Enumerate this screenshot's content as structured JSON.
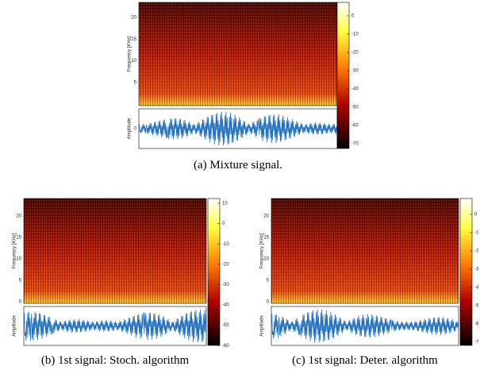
{
  "figures": [
    {
      "caption": "(a)  Mixture signal.",
      "freq_label": "Frequency [KHz]",
      "freq_ticks": [
        5,
        10,
        15,
        20
      ],
      "amp_label": "Amplitude",
      "amp_ticks": [
        0
      ],
      "colorbar_ticks": [
        0,
        -10,
        -20,
        -30,
        -40,
        -50,
        -60,
        -70
      ]
    },
    {
      "caption": "(b)  1st signal: Stoch. algorithm",
      "freq_label": "Frequency [KHz]",
      "freq_ticks": [
        0,
        5,
        10,
        15,
        20
      ],
      "amp_label": "Amplitude",
      "amp_ticks": [],
      "colorbar_ticks": [
        10,
        0,
        -10,
        -20,
        -30,
        -40,
        -50,
        -60
      ]
    },
    {
      "caption": "(c)  1st signal: Deter. algorithm",
      "freq_label": "Frequency [KHz]",
      "freq_ticks": [
        0,
        5,
        10,
        15,
        20
      ],
      "amp_label": "Amplitude",
      "amp_ticks": [],
      "colorbar_ticks": [
        0,
        -1,
        -2,
        -3,
        -4,
        -5,
        -6,
        -7
      ]
    }
  ]
}
